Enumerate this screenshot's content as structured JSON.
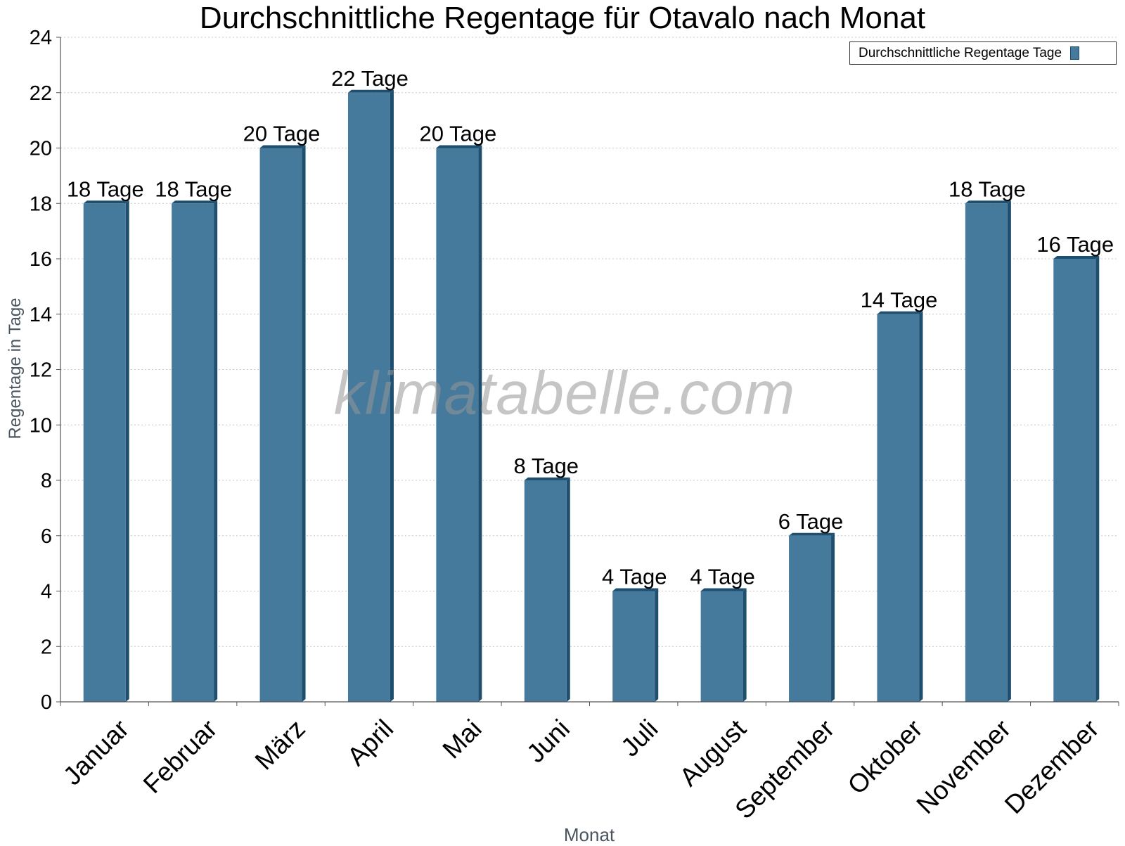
{
  "chart_data": {
    "type": "bar",
    "title": "Durchschnittliche Regentage für Otavalo nach Monat",
    "xlabel": "Monat",
    "ylabel": "Regentage in Tage",
    "ylim": [
      0,
      24
    ],
    "yticks": [
      0,
      2,
      4,
      6,
      8,
      10,
      12,
      14,
      16,
      18,
      20,
      22,
      24
    ],
    "grid": true,
    "legend_position": "top-right",
    "watermark": "klimatabelle.com",
    "categories": [
      "Januar",
      "Februar",
      "März",
      "April",
      "Mai",
      "Juni",
      "Juli",
      "August",
      "September",
      "Oktober",
      "November",
      "Dezember"
    ],
    "series": [
      {
        "name": "Durchschnittliche Regentage Tage",
        "values": [
          18,
          18,
          20,
          22,
          20,
          8,
          4,
          4,
          6,
          14,
          18,
          16
        ],
        "data_labels": [
          "18 Tage",
          "18 Tage",
          "20 Tage",
          "22 Tage",
          "20 Tage",
          "8 Tage",
          "4 Tage",
          "4 Tage",
          "6 Tage",
          "14 Tage",
          "18 Tage",
          "16 Tage"
        ],
        "color": "#467a9c",
        "edge_color": "#1f4f6f"
      }
    ]
  }
}
